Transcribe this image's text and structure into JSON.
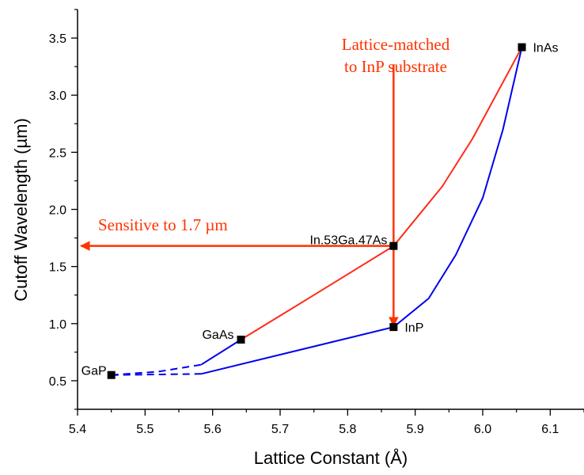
{
  "chart_data": {
    "type": "scatter",
    "xlabel": "Lattice Constant (Å)",
    "ylabel": "Cutoff Wavelength (µm)",
    "xlim": [
      5.4,
      6.15
    ],
    "ylim": [
      0.25,
      3.75
    ],
    "x_ticks": [
      5.4,
      5.5,
      5.6,
      5.7,
      5.8,
      5.9,
      6.0,
      6.1
    ],
    "y_ticks": [
      0.5,
      1.0,
      1.5,
      2.0,
      2.5,
      3.0,
      3.5
    ],
    "points": [
      {
        "label": "InAs",
        "x": 6.058,
        "y": 3.42
      },
      {
        "label": "In.53Ga.47As",
        "x": 5.868,
        "y": 1.68
      },
      {
        "label": "InP",
        "x": 5.868,
        "y": 0.97
      },
      {
        "label": "GaAs",
        "x": 5.642,
        "y": 0.86
      },
      {
        "label": "GaP",
        "x": 5.45,
        "y": 0.55
      }
    ],
    "series": [
      {
        "color": "#ff2a1a",
        "style": "solid",
        "x": [
          5.642,
          5.75,
          5.868,
          5.94,
          5.985,
          6.058
        ],
        "y": [
          0.86,
          1.25,
          1.68,
          2.2,
          2.62,
          3.42
        ]
      },
      {
        "color": "#0000ee",
        "style": "solid",
        "x": [
          5.583,
          5.642
        ],
        "y": [
          0.64,
          0.86
        ]
      },
      {
        "color": "#0000ee",
        "style": "solid",
        "x": [
          5.583,
          5.75,
          5.868,
          5.92,
          5.96,
          6.0,
          6.03,
          6.058
        ],
        "y": [
          0.56,
          0.8,
          0.97,
          1.22,
          1.6,
          2.1,
          2.7,
          3.42
        ]
      },
      {
        "color": "#0000ee",
        "style": "dashed",
        "x": [
          5.45,
          5.52,
          5.583
        ],
        "y": [
          0.55,
          0.58,
          0.64
        ]
      },
      {
        "color": "#0000ee",
        "style": "dashed",
        "x": [
          5.45,
          5.583
        ],
        "y": [
          0.55,
          0.56
        ]
      }
    ],
    "annotations": [
      {
        "text_lines": [
          "Lattice-matched",
          "to InP substrate"
        ],
        "arrow_from": [
          5.868,
          3.27
        ],
        "arrow_to": [
          5.868,
          0.98
        ]
      },
      {
        "text_lines": [
          "Sensitive to 1.7 µm"
        ],
        "arrow_from": [
          5.868,
          1.68
        ],
        "arrow_to": [
          5.405,
          1.68
        ]
      }
    ],
    "annotation_color": "#ff3300",
    "grid": false
  }
}
